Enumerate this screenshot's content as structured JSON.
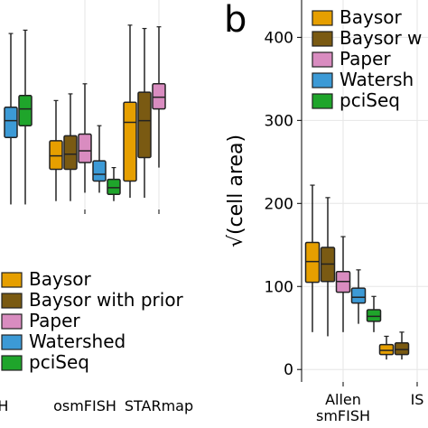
{
  "chart_data": [
    {
      "type": "boxplot",
      "panel": "a",
      "categories": [
        "ISH",
        "osmFISH",
        "STARmap"
      ],
      "category_labels": [
        "ISH",
        "osmFISH",
        "STARmap"
      ],
      "ylabel": "",
      "grid": true,
      "legend": {
        "placement": "bottom",
        "entries": [
          "Baysor",
          "Baysor with prior",
          "Paper",
          "Watershed",
          "pciSeq"
        ]
      },
      "series": [
        {
          "name": "Baysor",
          "color": "#E69F00",
          "boxes": [
            null,
            {
              "whislo": 2,
              "q1": 3.9,
              "median": 4.7,
              "q3": 5.6,
              "whishi": 8.0
            },
            {
              "whislo": 2.2,
              "q1": 3.2,
              "median": 6.7,
              "q3": 7.9,
              "whishi": 12.5
            }
          ]
        },
        {
          "name": "Baysor with prior",
          "color": "#7A5A12",
          "boxes": [
            null,
            {
              "whislo": 2,
              "q1": 3.9,
              "median": 4.8,
              "q3": 5.9,
              "whishi": 8.4
            },
            {
              "whislo": 2.2,
              "q1": 4.6,
              "median": 6.8,
              "q3": 8.5,
              "whishi": 12.3
            }
          ]
        },
        {
          "name": "Paper",
          "color": "#D98CC0",
          "boxes": [
            null,
            {
              "whislo": 2.5,
              "q1": 4.3,
              "median": 5.0,
              "q3": 6.0,
              "whishi": 9.0
            },
            {
              "whislo": 4.0,
              "q1": 7.5,
              "median": 8.2,
              "q3": 9.0,
              "whishi": 12.4
            }
          ]
        },
        {
          "name": "Watershed",
          "color": "#3C9AD6",
          "boxes": [
            {
              "whislo": 1.8,
              "q1": 5.8,
              "median": 6.8,
              "q3": 7.6,
              "whishi": 12.0
            },
            {
              "whislo": 2.5,
              "q1": 3.2,
              "median": 3.6,
              "q3": 4.4,
              "whishi": 6.5
            },
            null
          ]
        },
        {
          "name": "pciSeq",
          "color": "#1FA52B",
          "boxes": [
            {
              "whislo": 1.8,
              "q1": 6.5,
              "median": 7.5,
              "q3": 8.3,
              "whishi": 12.2
            },
            {
              "whislo": 2.0,
              "q1": 2.4,
              "median": 2.8,
              "q3": 3.3,
              "whishi": 4.0
            },
            null
          ]
        }
      ]
    },
    {
      "type": "boxplot",
      "panel": "b",
      "categories": [
        "Allen smFISH",
        "ISS"
      ],
      "category_labels": [
        "Allen\nsmFISH",
        "IS"
      ],
      "ylabel": "√(cell area)",
      "yticks": [
        0,
        100,
        200,
        300,
        400
      ],
      "ylim": [
        -15,
        445
      ],
      "grid": true,
      "legend": {
        "placement": "top-left",
        "entries": [
          "Baysor",
          "Baysor w",
          "Paper",
          "Watersh",
          "pciSeq"
        ]
      },
      "series": [
        {
          "name": "Baysor",
          "color": "#E69F00",
          "boxes": [
            {
              "whislo": 45,
              "q1": 105,
              "median": 130,
              "q3": 153,
              "whishi": 222
            },
            {
              "whislo": 12,
              "q1": 18,
              "median": 23,
              "q3": 30,
              "whishi": 40
            }
          ]
        },
        {
          "name": "Baysor with prior",
          "color": "#7A5A12",
          "boxes": [
            {
              "whislo": 40,
              "q1": 106,
              "median": 127,
              "q3": 147,
              "whishi": 207
            },
            {
              "whislo": 12,
              "q1": 18,
              "median": 24,
              "q3": 32,
              "whishi": 45
            }
          ]
        },
        {
          "name": "Paper",
          "color": "#D98CC0",
          "boxes": [
            {
              "whislo": 45,
              "q1": 93,
              "median": 106,
              "q3": 118,
              "whishi": 160
            },
            null
          ]
        },
        {
          "name": "Watershed",
          "color": "#3C9AD6",
          "boxes": [
            {
              "whislo": 55,
              "q1": 80,
              "median": 87,
              "q3": 98,
              "whishi": 120
            },
            null
          ]
        },
        {
          "name": "pciSeq",
          "color": "#1FA52B",
          "boxes": [
            {
              "whislo": 45,
              "q1": 58,
              "median": 64,
              "q3": 72,
              "whishi": 88
            },
            null
          ]
        }
      ]
    }
  ],
  "panel_labels": {
    "b": "b"
  }
}
